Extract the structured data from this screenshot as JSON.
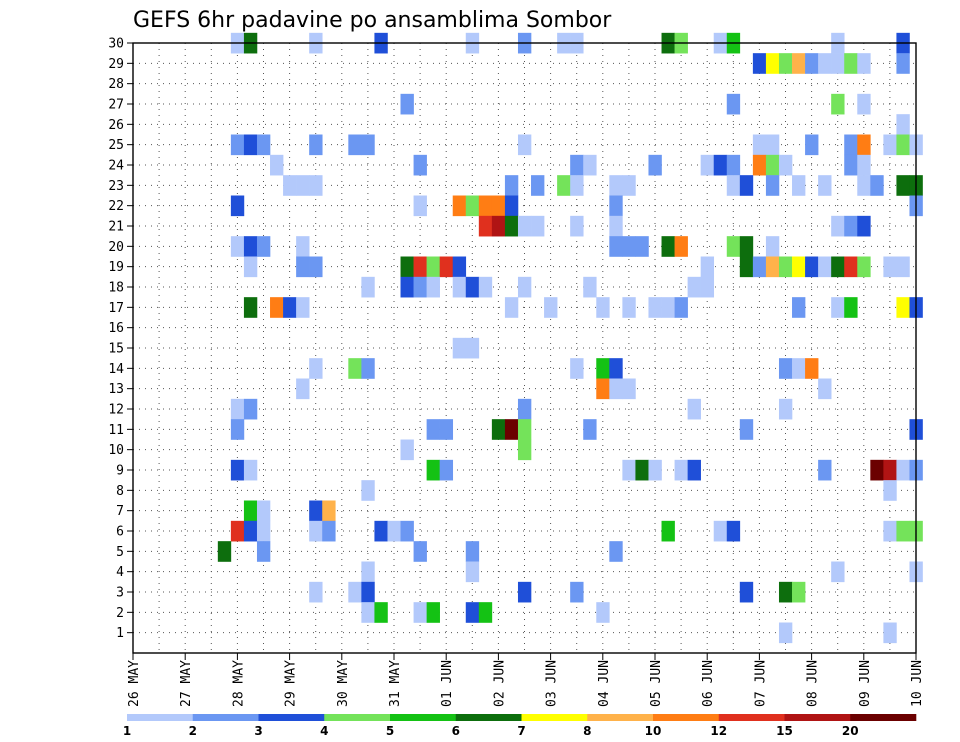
{
  "chart_data": {
    "type": "heatmap",
    "title": "GEFS 6hr padavine po ansamblima Sombor",
    "xlabel": "",
    "ylabel": "",
    "x_tick_labels": [
      "26 MAY",
      "27 MAY",
      "28 MAY",
      "29 MAY",
      "30 MAY",
      "31 MAY",
      "01 JUN",
      "02 JUN",
      "03 JUN",
      "04 JUN",
      "05 JUN",
      "06 JUN",
      "07 JUN",
      "08 JUN",
      "09 JUN",
      "10 JUN"
    ],
    "y_tick_labels": [
      "1",
      "2",
      "3",
      "4",
      "5",
      "6",
      "7",
      "8",
      "9",
      "10",
      "11",
      "12",
      "13",
      "14",
      "15",
      "16",
      "17",
      "18",
      "19",
      "20",
      "21",
      "22",
      "23",
      "24",
      "25",
      "26",
      "27",
      "28",
      "29",
      "30"
    ],
    "xlim": [
      0,
      60
    ],
    "ylim": [
      0,
      30
    ],
    "grid": true,
    "colorbar": {
      "levels": [
        1,
        2,
        3,
        4,
        5,
        6,
        7,
        8,
        10,
        12,
        15,
        20
      ],
      "labels": [
        "1",
        "2",
        "3",
        "4",
        "5",
        "6",
        "7",
        "8",
        "10",
        "12",
        "15",
        "20"
      ],
      "colors": [
        "#b3c9fb",
        "#6b97f2",
        "#1f4fd8",
        "#74e35a",
        "#14c214",
        "#0d6e0d",
        "#ffff00",
        "#ffb24a",
        "#ff7d14",
        "#e0301e",
        "#b01414",
        "#6b0000"
      ]
    },
    "cells": [
      [
        8,
        30,
        1
      ],
      [
        9,
        30,
        6
      ],
      [
        14,
        30,
        1
      ],
      [
        19,
        30,
        3
      ],
      [
        26,
        30,
        1
      ],
      [
        30,
        30,
        2
      ],
      [
        33,
        30,
        1
      ],
      [
        34,
        30,
        1
      ],
      [
        41,
        30,
        6
      ],
      [
        42,
        30,
        4
      ],
      [
        45,
        30,
        1
      ],
      [
        46,
        30,
        5
      ],
      [
        54,
        30,
        1
      ],
      [
        59,
        30,
        3
      ],
      [
        48,
        29,
        3
      ],
      [
        49,
        29,
        7
      ],
      [
        50,
        29,
        4
      ],
      [
        51,
        29,
        8
      ],
      [
        52,
        29,
        2
      ],
      [
        53,
        29,
        1
      ],
      [
        54,
        29,
        1
      ],
      [
        55,
        29,
        4
      ],
      [
        56,
        29,
        1
      ],
      [
        59,
        29,
        2
      ],
      [
        21,
        27,
        2
      ],
      [
        46,
        27,
        2
      ],
      [
        54,
        27,
        4
      ],
      [
        56,
        27,
        1
      ],
      [
        59,
        26,
        1
      ],
      [
        8,
        25,
        2
      ],
      [
        9,
        25,
        3
      ],
      [
        10,
        25,
        2
      ],
      [
        14,
        25,
        2
      ],
      [
        17,
        25,
        2
      ],
      [
        18,
        25,
        2
      ],
      [
        30,
        25,
        1
      ],
      [
        48,
        25,
        1
      ],
      [
        49,
        25,
        1
      ],
      [
        52,
        25,
        2
      ],
      [
        55,
        25,
        2
      ],
      [
        56,
        25,
        9
      ],
      [
        58,
        25,
        1
      ],
      [
        59,
        25,
        4
      ],
      [
        60,
        25,
        1
      ],
      [
        11,
        24,
        1
      ],
      [
        22,
        24,
        2
      ],
      [
        34,
        24,
        2
      ],
      [
        35,
        24,
        1
      ],
      [
        40,
        24,
        2
      ],
      [
        44,
        24,
        1
      ],
      [
        45,
        24,
        3
      ],
      [
        46,
        24,
        2
      ],
      [
        48,
        24,
        9
      ],
      [
        49,
        24,
        4
      ],
      [
        50,
        24,
        1
      ],
      [
        55,
        24,
        2
      ],
      [
        56,
        24,
        1
      ],
      [
        12,
        23,
        1
      ],
      [
        13,
        23,
        1
      ],
      [
        14,
        23,
        1
      ],
      [
        29,
        23,
        2
      ],
      [
        31,
        23,
        2
      ],
      [
        33,
        23,
        4
      ],
      [
        34,
        23,
        1
      ],
      [
        37,
        23,
        1
      ],
      [
        38,
        23,
        1
      ],
      [
        46,
        23,
        1
      ],
      [
        47,
        23,
        3
      ],
      [
        49,
        23,
        2
      ],
      [
        51,
        23,
        1
      ],
      [
        53,
        23,
        1
      ],
      [
        56,
        23,
        1
      ],
      [
        57,
        23,
        2
      ],
      [
        59,
        23,
        6
      ],
      [
        60,
        23,
        6
      ],
      [
        8,
        22,
        3
      ],
      [
        22,
        22,
        1
      ],
      [
        25,
        22,
        9
      ],
      [
        26,
        22,
        4
      ],
      [
        27,
        22,
        9
      ],
      [
        28,
        22,
        9
      ],
      [
        29,
        22,
        3
      ],
      [
        37,
        22,
        2
      ],
      [
        60,
        22,
        2
      ],
      [
        27,
        21,
        10
      ],
      [
        28,
        21,
        11
      ],
      [
        29,
        21,
        6
      ],
      [
        30,
        21,
        1
      ],
      [
        31,
        21,
        1
      ],
      [
        34,
        21,
        1
      ],
      [
        37,
        21,
        1
      ],
      [
        54,
        21,
        1
      ],
      [
        55,
        21,
        2
      ],
      [
        56,
        21,
        3
      ],
      [
        8,
        20,
        1
      ],
      [
        9,
        20,
        3
      ],
      [
        10,
        20,
        2
      ],
      [
        13,
        20,
        1
      ],
      [
        37,
        20,
        2
      ],
      [
        38,
        20,
        2
      ],
      [
        39,
        20,
        2
      ],
      [
        41,
        20,
        6
      ],
      [
        42,
        20,
        9
      ],
      [
        46,
        20,
        4
      ],
      [
        47,
        20,
        6
      ],
      [
        49,
        20,
        1
      ],
      [
        9,
        19,
        1
      ],
      [
        13,
        19,
        2
      ],
      [
        14,
        19,
        2
      ],
      [
        21,
        19,
        6
      ],
      [
        22,
        19,
        10
      ],
      [
        23,
        19,
        4
      ],
      [
        24,
        19,
        10
      ],
      [
        25,
        19,
        3
      ],
      [
        44,
        19,
        1
      ],
      [
        47,
        19,
        6
      ],
      [
        48,
        19,
        2
      ],
      [
        49,
        19,
        8
      ],
      [
        50,
        19,
        4
      ],
      [
        51,
        19,
        7
      ],
      [
        52,
        19,
        3
      ],
      [
        53,
        19,
        1
      ],
      [
        54,
        19,
        6
      ],
      [
        55,
        19,
        10
      ],
      [
        56,
        19,
        4
      ],
      [
        58,
        19,
        1
      ],
      [
        59,
        19,
        1
      ],
      [
        18,
        18,
        1
      ],
      [
        21,
        18,
        3
      ],
      [
        22,
        18,
        2
      ],
      [
        23,
        18,
        1
      ],
      [
        25,
        18,
        1
      ],
      [
        26,
        18,
        3
      ],
      [
        27,
        18,
        1
      ],
      [
        30,
        18,
        1
      ],
      [
        35,
        18,
        1
      ],
      [
        43,
        18,
        1
      ],
      [
        44,
        18,
        1
      ],
      [
        9,
        17,
        6
      ],
      [
        11,
        17,
        9
      ],
      [
        12,
        17,
        3
      ],
      [
        13,
        17,
        1
      ],
      [
        29,
        17,
        1
      ],
      [
        32,
        17,
        1
      ],
      [
        36,
        17,
        1
      ],
      [
        38,
        17,
        1
      ],
      [
        40,
        17,
        1
      ],
      [
        41,
        17,
        1
      ],
      [
        42,
        17,
        2
      ],
      [
        51,
        17,
        2
      ],
      [
        54,
        17,
        1
      ],
      [
        55,
        17,
        5
      ],
      [
        59,
        17,
        7
      ],
      [
        60,
        17,
        3
      ],
      [
        25,
        15,
        1
      ],
      [
        26,
        15,
        1
      ],
      [
        14,
        14,
        1
      ],
      [
        17,
        14,
        4
      ],
      [
        18,
        14,
        2
      ],
      [
        34,
        14,
        1
      ],
      [
        36,
        14,
        5
      ],
      [
        37,
        14,
        3
      ],
      [
        50,
        14,
        2
      ],
      [
        51,
        14,
        1
      ],
      [
        52,
        14,
        9
      ],
      [
        13,
        13,
        1
      ],
      [
        36,
        13,
        9
      ],
      [
        37,
        13,
        1
      ],
      [
        38,
        13,
        1
      ],
      [
        53,
        13,
        1
      ],
      [
        8,
        12,
        1
      ],
      [
        9,
        12,
        2
      ],
      [
        30,
        12,
        2
      ],
      [
        43,
        12,
        1
      ],
      [
        50,
        12,
        1
      ],
      [
        8,
        11,
        2
      ],
      [
        23,
        11,
        2
      ],
      [
        24,
        11,
        2
      ],
      [
        28,
        11,
        6
      ],
      [
        29,
        11,
        12
      ],
      [
        30,
        11,
        4
      ],
      [
        35,
        11,
        2
      ],
      [
        47,
        11,
        2
      ],
      [
        60,
        11,
        3
      ],
      [
        21,
        10,
        1
      ],
      [
        30,
        10,
        4
      ],
      [
        8,
        9,
        3
      ],
      [
        9,
        9,
        1
      ],
      [
        23,
        9,
        5
      ],
      [
        24,
        9,
        2
      ],
      [
        38,
        9,
        1
      ],
      [
        39,
        9,
        6
      ],
      [
        40,
        9,
        1
      ],
      [
        42,
        9,
        1
      ],
      [
        43,
        9,
        3
      ],
      [
        53,
        9,
        2
      ],
      [
        57,
        9,
        12
      ],
      [
        58,
        9,
        11
      ],
      [
        59,
        9,
        1
      ],
      [
        60,
        9,
        2
      ],
      [
        18,
        8,
        1
      ],
      [
        58,
        8,
        1
      ],
      [
        9,
        7,
        5
      ],
      [
        10,
        7,
        1
      ],
      [
        14,
        7,
        3
      ],
      [
        15,
        7,
        8
      ],
      [
        8,
        6,
        10
      ],
      [
        9,
        6,
        3
      ],
      [
        10,
        6,
        1
      ],
      [
        14,
        6,
        1
      ],
      [
        15,
        6,
        2
      ],
      [
        19,
        6,
        3
      ],
      [
        20,
        6,
        1
      ],
      [
        21,
        6,
        2
      ],
      [
        41,
        6,
        5
      ],
      [
        45,
        6,
        1
      ],
      [
        46,
        6,
        3
      ],
      [
        58,
        6,
        1
      ],
      [
        59,
        6,
        4
      ],
      [
        60,
        6,
        4
      ],
      [
        7,
        5,
        6
      ],
      [
        10,
        5,
        2
      ],
      [
        22,
        5,
        2
      ],
      [
        26,
        5,
        2
      ],
      [
        37,
        5,
        2
      ],
      [
        18,
        4,
        1
      ],
      [
        26,
        4,
        1
      ],
      [
        54,
        4,
        1
      ],
      [
        60,
        4,
        1
      ],
      [
        14,
        3,
        1
      ],
      [
        17,
        3,
        1
      ],
      [
        18,
        3,
        3
      ],
      [
        30,
        3,
        3
      ],
      [
        34,
        3,
        2
      ],
      [
        47,
        3,
        3
      ],
      [
        50,
        3,
        6
      ],
      [
        51,
        3,
        4
      ],
      [
        18,
        2,
        1
      ],
      [
        19,
        2,
        5
      ],
      [
        22,
        2,
        1
      ],
      [
        23,
        2,
        5
      ],
      [
        26,
        2,
        3
      ],
      [
        27,
        2,
        5
      ],
      [
        36,
        2,
        1
      ],
      [
        50,
        1,
        1
      ],
      [
        58,
        1,
        1
      ]
    ]
  }
}
